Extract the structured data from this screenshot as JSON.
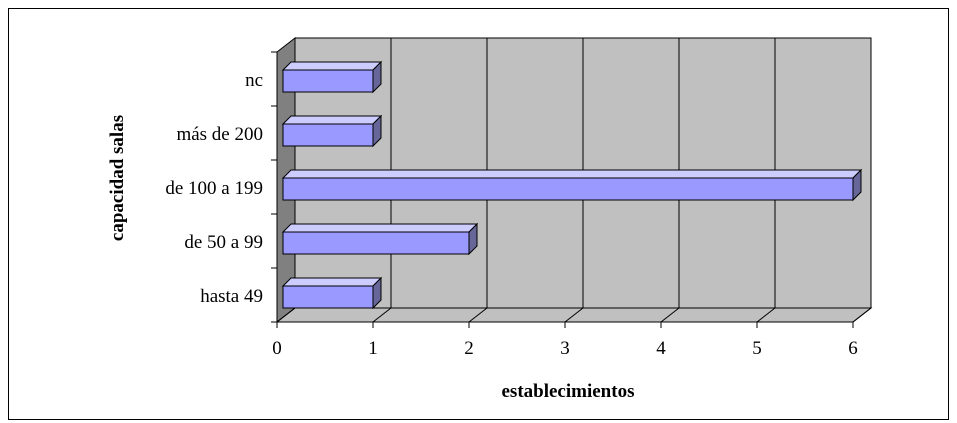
{
  "chart_data": {
    "type": "bar",
    "orientation": "horizontal",
    "three_d": true,
    "categories": [
      "hasta 49",
      "de 50 a 99",
      "de 100 a 199",
      "más de 200",
      "nc"
    ],
    "values": [
      1,
      2,
      6,
      1,
      1
    ],
    "xlabel": "establecimientos",
    "ylabel": "capacidad salas",
    "xlim": [
      0,
      6
    ],
    "xticks": [
      "0",
      "1",
      "2",
      "3",
      "4",
      "5",
      "6"
    ],
    "grid": true,
    "legend": "none",
    "colors": {
      "bar_front": "#9999ff",
      "bar_top": "#ccccff",
      "bar_side": "#666699",
      "wall": "#c0c0c0",
      "side_wall": "#808080"
    }
  }
}
